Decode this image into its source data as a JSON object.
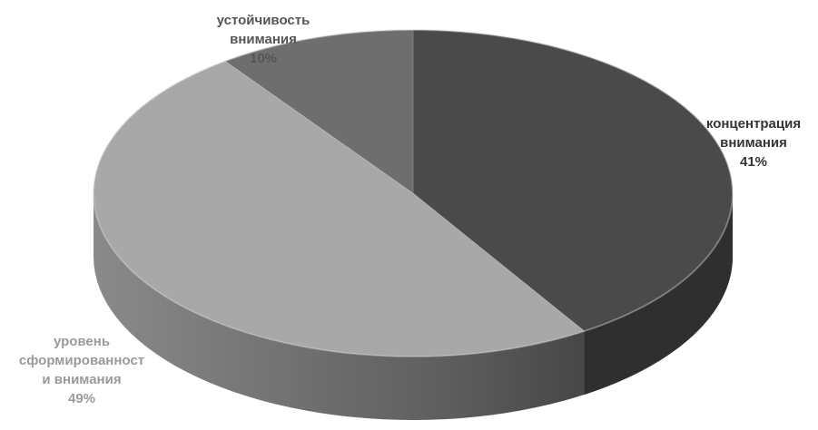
{
  "chart_data": {
    "type": "pie",
    "style": "3d",
    "title": "",
    "slices": [
      {
        "name_lines": [
          "концентрация",
          "внимания"
        ],
        "value": 41,
        "value_label": "41%",
        "color": "#4a4a4a",
        "label_color": "#333333"
      },
      {
        "name_lines": [
          "уровень",
          "сформированност",
          "и внимания"
        ],
        "value": 49,
        "value_label": "49%",
        "color": "#a8a8a8",
        "label_color": "#9a9a9a"
      },
      {
        "name_lines": [
          "устойчивость",
          "внимания"
        ],
        "value": 10,
        "value_label": "10%",
        "color": "#6e6e6e",
        "label_color": "#555555"
      }
    ]
  }
}
